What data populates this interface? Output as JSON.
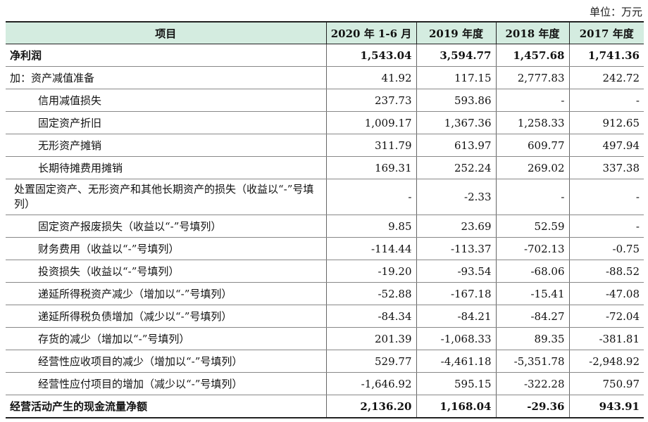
{
  "unit_label": "单位：万元",
  "header": {
    "item": "项目",
    "cols": [
      "2020 年 1-6 月",
      "2019 年度",
      "2018 年度",
      "2017 年度"
    ]
  },
  "rows": [
    {
      "label": "净利润",
      "values": [
        "1,543.04",
        "3,594.77",
        "1,457.68",
        "1,741.36"
      ]
    },
    {
      "label": "加：资产减值准备",
      "values": [
        "41.92",
        "117.15",
        "2,777.83",
        "242.72"
      ]
    },
    {
      "label": "信用减值损失",
      "values": [
        "237.73",
        "593.86",
        "-",
        "-"
      ]
    },
    {
      "label": "固定资产折旧",
      "values": [
        "1,009.17",
        "1,367.36",
        "1,258.33",
        "912.65"
      ]
    },
    {
      "label": "无形资产摊销",
      "values": [
        "311.79",
        "613.97",
        "609.77",
        "497.94"
      ]
    },
    {
      "label": "长期待摊费用摊销",
      "values": [
        "169.31",
        "252.24",
        "269.02",
        "337.38"
      ]
    },
    {
      "label": "处置固定资产、无形资产和其他长期资产的损失（收益以“-”号填列）",
      "values": [
        "-",
        "-2.33",
        "-",
        "-"
      ]
    },
    {
      "label": "固定资产报废损失（收益以“-”号填列）",
      "values": [
        "9.85",
        "23.69",
        "52.59",
        "-"
      ]
    },
    {
      "label": "财务费用（收益以“-”号填列）",
      "values": [
        "-114.44",
        "-113.37",
        "-702.13",
        "-0.75"
      ]
    },
    {
      "label": "投资损失（收益以“-”号填列）",
      "values": [
        "-19.20",
        "-93.54",
        "-68.06",
        "-88.52"
      ]
    },
    {
      "label": "递延所得税资产减少（增加以“-”号填列）",
      "values": [
        "-52.88",
        "-167.18",
        "-15.41",
        "-47.08"
      ]
    },
    {
      "label": "递延所得税负债增加（减少以“-”号填列）",
      "values": [
        "-84.34",
        "-84.21",
        "-84.27",
        "-72.04"
      ]
    },
    {
      "label": "存货的减少（增加以“-”号填列）",
      "values": [
        "201.39",
        "-1,068.33",
        "89.35",
        "-381.81"
      ]
    },
    {
      "label": "经营性应收项目的减少（增加以“-”号填列）",
      "values": [
        "529.77",
        "-4,461.18",
        "-5,351.78",
        "-2,948.92"
      ]
    },
    {
      "label": "经营性应付项目的增加（减少以“-”号填列）",
      "values": [
        "-1,646.92",
        "595.15",
        "-322.28",
        "750.97"
      ]
    },
    {
      "label": "经营活动产生的现金流量净额",
      "values": [
        "2,136.20",
        "1,168.04",
        "-29.36",
        "943.91"
      ]
    }
  ]
}
